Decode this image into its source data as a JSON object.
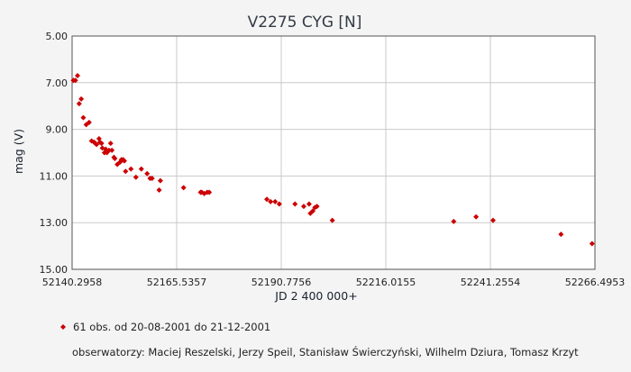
{
  "colors": {
    "background": "#f4f4f4",
    "plot_background": "#ffffff",
    "grid": "#c9c9c9",
    "frame": "#555555",
    "marker": "#cc0000"
  },
  "legend": {
    "marker_icon": "diamond-icon",
    "observations": "61 obs. od 20-08-2001 do 21-12-2001",
    "observers": "obserwatorzy: Maciej Reszelski, Jerzy Speil, Stanisław Świerczyński, Wilhelm Dziura, Tomasz Krzyt"
  },
  "chart_data": {
    "type": "scatter",
    "title": "V2275 CYG [N]",
    "xlabel": "JD 2 400 000+",
    "ylabel": "mag (V)",
    "xlim": [
      52140.2958,
      52266.4953
    ],
    "ylim": [
      5.0,
      15.0
    ],
    "y_inverted": true,
    "x_ticks": [
      "52140.2958",
      "52165.5357",
      "52190.7756",
      "52216.0155",
      "52241.2554",
      "52266.4953"
    ],
    "y_ticks": [
      "5.00",
      "7.00",
      "9.00",
      "11.00",
      "13.00",
      "15.00"
    ],
    "grid": true,
    "x": [
      52140.6,
      52141.1,
      52141.6,
      52142.0,
      52142.5,
      52143.0,
      52143.7,
      52144.4,
      52145.0,
      52145.6,
      52145.9,
      52146.2,
      52146.8,
      52147.0,
      52147.4,
      52147.6,
      52148.1,
      52148.4,
      52148.7,
      52149.2,
      52149.6,
      52149.9,
      52150.4,
      52150.6,
      52151.2,
      52151.9,
      52152.2,
      52152.6,
      52152.9,
      52153.2,
      52154.5,
      52155.7,
      52157.0,
      52158.4,
      52159.1,
      52159.6,
      52161.3,
      52161.6,
      52167.2,
      52171.3,
      52171.6,
      52172.2,
      52172.9,
      52173.4,
      52187.3,
      52188.2,
      52189.3,
      52190.3,
      52194.1,
      52196.2,
      52197.5,
      52197.8,
      52198.4,
      52198.9,
      52199.4,
      52203.1,
      52232.4,
      52237.8,
      52241.9,
      52258.3,
      52265.8
    ],
    "y": [
      6.9,
      6.9,
      6.7,
      7.9,
      7.7,
      8.5,
      8.8,
      8.7,
      9.5,
      9.55,
      9.6,
      9.65,
      9.4,
      9.55,
      9.6,
      9.8,
      10.0,
      9.85,
      10.0,
      9.9,
      9.6,
      9.9,
      10.2,
      10.25,
      10.5,
      10.4,
      10.3,
      10.3,
      10.35,
      10.8,
      10.7,
      11.05,
      10.7,
      10.9,
      11.1,
      11.1,
      11.6,
      11.2,
      11.5,
      11.7,
      11.7,
      11.75,
      11.7,
      11.7,
      12.0,
      12.1,
      12.1,
      12.2,
      12.2,
      12.3,
      12.2,
      12.6,
      12.5,
      12.35,
      12.3,
      12.9,
      12.95,
      12.75,
      12.9,
      13.5,
      13.9
    ]
  }
}
